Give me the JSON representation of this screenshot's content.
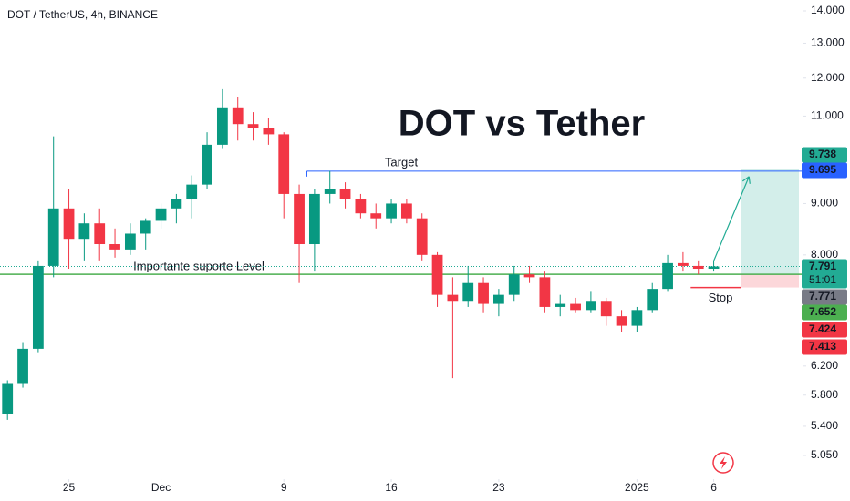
{
  "chart_data": {
    "type": "candlestick",
    "header": "DOT / TetherUS, 4h, BINANCE",
    "title": "DOT vs Tether",
    "annotations": {
      "target": "Target",
      "support": "Importante suporte Level",
      "stop": "Stop"
    },
    "log_scale": true,
    "ylim": [
      5.05,
      14
    ],
    "yticks": [
      {
        "value": 14,
        "label": "14.000"
      },
      {
        "value": 13,
        "label": "13.000"
      },
      {
        "value": 12,
        "label": "12.000"
      },
      {
        "value": 11,
        "label": "11.000"
      },
      {
        "value": 9,
        "label": "9.000"
      },
      {
        "value": 8,
        "label": "8.000"
      },
      {
        "value": 6.2,
        "label": "6.200"
      },
      {
        "value": 5.8,
        "label": "5.800"
      },
      {
        "value": 5.4,
        "label": "5.400"
      },
      {
        "value": 5.05,
        "label": "5.050"
      }
    ],
    "xlim": [
      -0.25,
      50.6
    ],
    "xticks": [
      {
        "value": 4,
        "label": "25"
      },
      {
        "value": 10,
        "label": "Dec"
      },
      {
        "value": 18,
        "label": "9"
      },
      {
        "value": 25,
        "label": "16"
      },
      {
        "value": 32,
        "label": "23"
      },
      {
        "value": 41,
        "label": "2025"
      },
      {
        "value": 46,
        "label": "6"
      }
    ],
    "up_color": "#089981",
    "down_color": "#f23645",
    "candles": [
      [
        5.55,
        6.0,
        5.48,
        5.95
      ],
      [
        5.95,
        6.55,
        5.9,
        6.45
      ],
      [
        6.45,
        7.9,
        6.4,
        7.8
      ],
      [
        7.8,
        10.5,
        7.6,
        8.9
      ],
      [
        8.9,
        9.3,
        7.75,
        8.3
      ],
      [
        8.3,
        8.8,
        7.9,
        8.6
      ],
      [
        8.6,
        8.9,
        7.9,
        8.2
      ],
      [
        8.2,
        8.5,
        7.95,
        8.1
      ],
      [
        8.1,
        8.6,
        8.0,
        8.4
      ],
      [
        8.4,
        8.7,
        8.1,
        8.65
      ],
      [
        8.65,
        9.0,
        8.5,
        8.9
      ],
      [
        8.9,
        9.2,
        8.6,
        9.1
      ],
      [
        9.1,
        9.6,
        8.7,
        9.4
      ],
      [
        9.4,
        10.6,
        9.3,
        10.3
      ],
      [
        10.3,
        11.7,
        10.2,
        11.2
      ],
      [
        11.2,
        11.5,
        10.4,
        10.8
      ],
      [
        10.8,
        11.1,
        10.4,
        10.7
      ],
      [
        10.7,
        10.95,
        10.3,
        10.55
      ],
      [
        10.55,
        10.6,
        8.7,
        9.2
      ],
      [
        9.2,
        9.4,
        7.5,
        8.2
      ],
      [
        8.2,
        9.3,
        7.7,
        9.2
      ],
      [
        9.2,
        9.7,
        9.0,
        9.3
      ],
      [
        9.3,
        9.45,
        8.9,
        9.1
      ],
      [
        9.1,
        9.2,
        8.7,
        8.8
      ],
      [
        8.8,
        9.0,
        8.5,
        8.7
      ],
      [
        8.7,
        9.1,
        8.6,
        9.0
      ],
      [
        9.0,
        9.1,
        8.6,
        8.7
      ],
      [
        8.7,
        8.8,
        7.9,
        8.0
      ],
      [
        8.0,
        8.05,
        7.1,
        7.3
      ],
      [
        7.3,
        7.6,
        6.03,
        7.2
      ],
      [
        7.2,
        7.8,
        7.1,
        7.5
      ],
      [
        7.5,
        7.6,
        7.0,
        7.15
      ],
      [
        7.15,
        7.4,
        6.95,
        7.3
      ],
      [
        7.3,
        7.8,
        7.2,
        7.65
      ],
      [
        7.65,
        7.8,
        7.5,
        7.6
      ],
      [
        7.6,
        7.7,
        7.0,
        7.1
      ],
      [
        7.1,
        7.3,
        6.95,
        7.15
      ],
      [
        7.15,
        7.25,
        7.0,
        7.05
      ],
      [
        7.05,
        7.35,
        7.0,
        7.2
      ],
      [
        7.2,
        7.25,
        6.8,
        6.95
      ],
      [
        6.95,
        7.05,
        6.7,
        6.8
      ],
      [
        6.8,
        7.1,
        6.7,
        7.05
      ],
      [
        7.05,
        7.5,
        7.0,
        7.4
      ],
      [
        7.4,
        8.0,
        7.35,
        7.85
      ],
      [
        7.85,
        8.05,
        7.7,
        7.8
      ],
      [
        7.8,
        7.9,
        7.65,
        7.75
      ],
      [
        7.75,
        7.9,
        7.7,
        7.791
      ]
    ],
    "price_labels": [
      {
        "value": 9.738,
        "color": "#22ab94"
      },
      {
        "value": 9.695,
        "color": "#2962ff"
      },
      {
        "value": 7.791,
        "color": "#22ab94",
        "countdown": "51:01"
      },
      {
        "value": 7.771,
        "color": "#787b86"
      },
      {
        "value": 7.652,
        "color": "#4caf50"
      },
      {
        "value": 7.424,
        "color": "#f23645"
      },
      {
        "value": 7.413,
        "color": "#f23645"
      }
    ]
  }
}
